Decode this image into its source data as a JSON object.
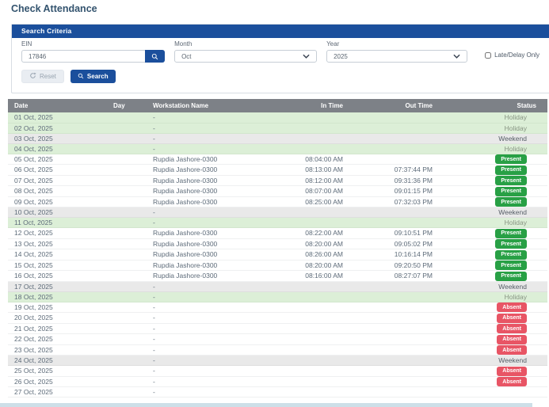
{
  "page": {
    "title": "Check Attendance"
  },
  "search": {
    "header": "Search Criteria",
    "ein_label": "EIN",
    "ein_value": "17846",
    "month_label": "Month",
    "month_value": "Oct",
    "year_label": "Year",
    "year_value": "2025",
    "late_delay_label": "Late/Delay Only",
    "late_delay_checked": false,
    "reset_label": "Reset",
    "search_label": "Search"
  },
  "table": {
    "columns": [
      "Date",
      "Day",
      "Workstation Name",
      "In Time",
      "Out Time",
      "Status"
    ],
    "rows": [
      {
        "date": "01 Oct, 2025",
        "day": "",
        "workstation": "-",
        "in_time": "",
        "out_time": "",
        "status": "Holiday",
        "kind": "holiday"
      },
      {
        "date": "02 Oct, 2025",
        "day": "",
        "workstation": "-",
        "in_time": "",
        "out_time": "",
        "status": "Holiday",
        "kind": "holiday"
      },
      {
        "date": "03 Oct, 2025",
        "day": "",
        "workstation": "-",
        "in_time": "",
        "out_time": "",
        "status": "Weekend",
        "kind": "weekend"
      },
      {
        "date": "04 Oct, 2025",
        "day": "",
        "workstation": "-",
        "in_time": "",
        "out_time": "",
        "status": "Holiday",
        "kind": "holiday"
      },
      {
        "date": "05 Oct, 2025",
        "day": "",
        "workstation": "Rupdia Jashore-0300",
        "in_time": "08:04:00 AM",
        "out_time": "",
        "status": "Present",
        "kind": "present"
      },
      {
        "date": "06 Oct, 2025",
        "day": "",
        "workstation": "Rupdia Jashore-0300",
        "in_time": "08:13:00 AM",
        "out_time": "07:37:44 PM",
        "status": "Present",
        "kind": "present"
      },
      {
        "date": "07 Oct, 2025",
        "day": "",
        "workstation": "Rupdia Jashore-0300",
        "in_time": "08:12:00 AM",
        "out_time": "09:31:36 PM",
        "status": "Present",
        "kind": "present"
      },
      {
        "date": "08 Oct, 2025",
        "day": "",
        "workstation": "Rupdia Jashore-0300",
        "in_time": "08:07:00 AM",
        "out_time": "09:01:15 PM",
        "status": "Present",
        "kind": "present"
      },
      {
        "date": "09 Oct, 2025",
        "day": "",
        "workstation": "Rupdia Jashore-0300",
        "in_time": "08:25:00 AM",
        "out_time": "07:32:03 PM",
        "status": "Present",
        "kind": "present"
      },
      {
        "date": "10 Oct, 2025",
        "day": "",
        "workstation": "-",
        "in_time": "",
        "out_time": "",
        "status": "Weekend",
        "kind": "weekend"
      },
      {
        "date": "11 Oct, 2025",
        "day": "",
        "workstation": "-",
        "in_time": "",
        "out_time": "",
        "status": "Holiday",
        "kind": "holiday"
      },
      {
        "date": "12 Oct, 2025",
        "day": "",
        "workstation": "Rupdia Jashore-0300",
        "in_time": "08:22:00 AM",
        "out_time": "09:10:51 PM",
        "status": "Present",
        "kind": "present"
      },
      {
        "date": "13 Oct, 2025",
        "day": "",
        "workstation": "Rupdia Jashore-0300",
        "in_time": "08:20:00 AM",
        "out_time": "09:05:02 PM",
        "status": "Present",
        "kind": "present"
      },
      {
        "date": "14 Oct, 2025",
        "day": "",
        "workstation": "Rupdia Jashore-0300",
        "in_time": "08:26:00 AM",
        "out_time": "10:16:14 PM",
        "status": "Present",
        "kind": "present"
      },
      {
        "date": "15 Oct, 2025",
        "day": "",
        "workstation": "Rupdia Jashore-0300",
        "in_time": "08:20:00 AM",
        "out_time": "09:20:50 PM",
        "status": "Present",
        "kind": "present"
      },
      {
        "date": "16 Oct, 2025",
        "day": "",
        "workstation": "Rupdia Jashore-0300",
        "in_time": "08:16:00 AM",
        "out_time": "08:27:07 PM",
        "status": "Present",
        "kind": "present"
      },
      {
        "date": "17 Oct, 2025",
        "day": "",
        "workstation": "-",
        "in_time": "",
        "out_time": "",
        "status": "Weekend",
        "kind": "weekend"
      },
      {
        "date": "18 Oct, 2025",
        "day": "",
        "workstation": "-",
        "in_time": "",
        "out_time": "",
        "status": "Holiday",
        "kind": "holiday"
      },
      {
        "date": "19 Oct, 2025",
        "day": "",
        "workstation": "-",
        "in_time": "",
        "out_time": "",
        "status": "Absent",
        "kind": "absent"
      },
      {
        "date": "20 Oct, 2025",
        "day": "",
        "workstation": "-",
        "in_time": "",
        "out_time": "",
        "status": "Absent",
        "kind": "absent"
      },
      {
        "date": "21 Oct, 2025",
        "day": "",
        "workstation": "-",
        "in_time": "",
        "out_time": "",
        "status": "Absent",
        "kind": "absent"
      },
      {
        "date": "22 Oct, 2025",
        "day": "",
        "workstation": "-",
        "in_time": "",
        "out_time": "",
        "status": "Absent",
        "kind": "absent"
      },
      {
        "date": "23 Oct, 2025",
        "day": "",
        "workstation": "-",
        "in_time": "",
        "out_time": "",
        "status": "Absent",
        "kind": "absent"
      },
      {
        "date": "24 Oct, 2025",
        "day": "",
        "workstation": "-",
        "in_time": "",
        "out_time": "",
        "status": "Weekend",
        "kind": "weekend"
      },
      {
        "date": "25 Oct, 2025",
        "day": "",
        "workstation": "-",
        "in_time": "",
        "out_time": "",
        "status": "Absent",
        "kind": "absent"
      },
      {
        "date": "26 Oct, 2025",
        "day": "",
        "workstation": "-",
        "in_time": "",
        "out_time": "",
        "status": "Absent",
        "kind": "absent"
      },
      {
        "date": "27 Oct, 2025",
        "day": "",
        "workstation": "-",
        "in_time": "",
        "out_time": "",
        "status": "",
        "kind": "none"
      }
    ]
  },
  "colors": {
    "primary": "#1b4f9c",
    "present_badge": "#28a045",
    "absent_badge": "#e85565",
    "holiday_row_bg": "#dcefd7",
    "weekend_row_bg": "#e9e9e9",
    "table_header_bg": "#7d8187"
  }
}
